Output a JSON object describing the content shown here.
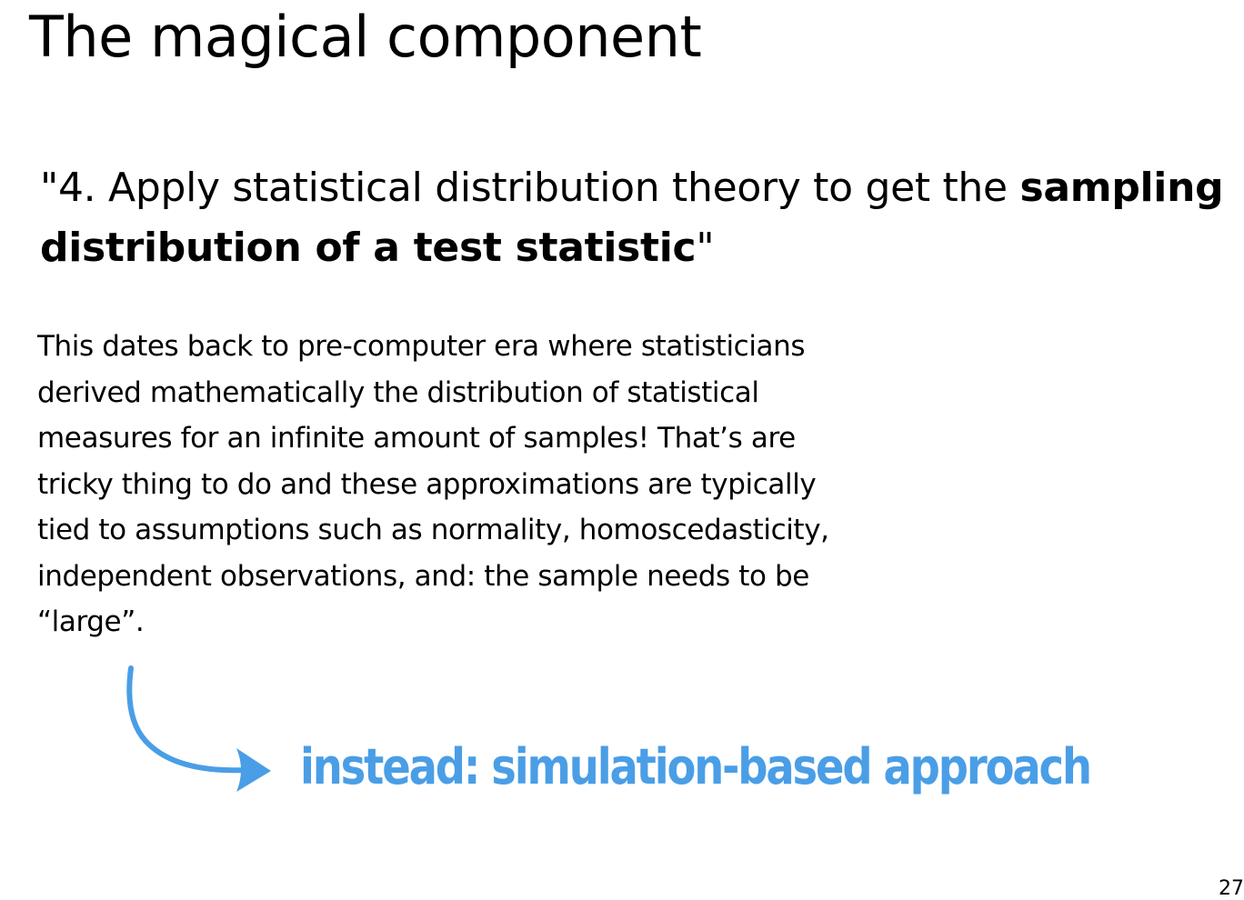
{
  "slide": {
    "title": "The magical component",
    "quote": {
      "open_mark": "\"",
      "lead": "4. Apply statistical distribution theory to get the ",
      "emphasis": "sampling distribution of a test statistic",
      "close_mark": "\""
    },
    "body": "This dates back to pre-computer era where statisticians derived mathematically the distribution of statistical measures for an infinite amount of samples! That’s are tricky thing to do and these approximations are typically tied to assumptions such as normality, homoscedasticity, independent observations, and: the sample needs to be “large”.",
    "callout": "instead: simulation-based approach",
    "page_number": "27"
  },
  "colors": {
    "text": "#000000",
    "accent": "#4a9ee6",
    "background": "#ffffff"
  },
  "icons": {
    "arrow": "curved-arrow-icon"
  }
}
